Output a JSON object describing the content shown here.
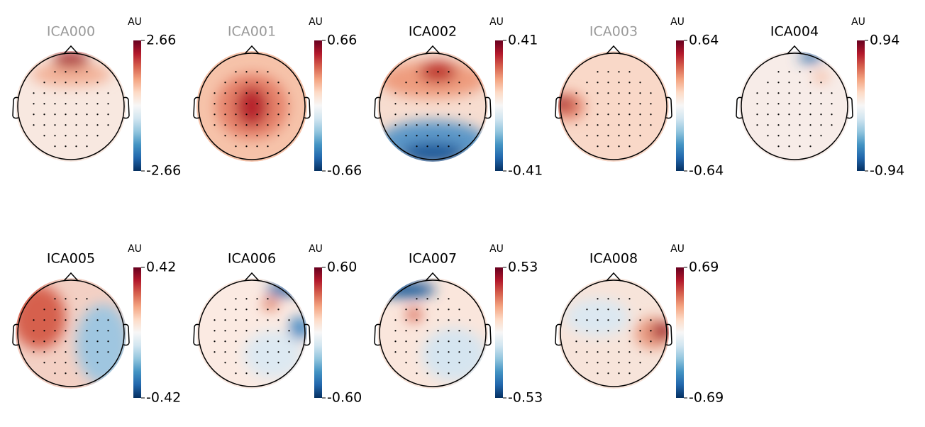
{
  "chart_data": [
    {
      "type": "topomap",
      "title": "ICA000",
      "title_color": "#999999",
      "colorbar_label": "AU",
      "ylim": [
        -2.66,
        2.66
      ],
      "yticks": [
        -2.66,
        2.66
      ]
    },
    {
      "type": "topomap",
      "title": "ICA001",
      "title_color": "#999999",
      "colorbar_label": "AU",
      "ylim": [
        -0.66,
        0.66
      ],
      "yticks": [
        -0.66,
        0.66
      ]
    },
    {
      "type": "topomap",
      "title": "ICA002",
      "title_color": "#000000",
      "colorbar_label": "AU",
      "ylim": [
        -0.41,
        0.41
      ],
      "yticks": [
        -0.41,
        0.41
      ]
    },
    {
      "type": "topomap",
      "title": "ICA003",
      "title_color": "#999999",
      "colorbar_label": "AU",
      "ylim": [
        -0.64,
        0.64
      ],
      "yticks": [
        -0.64,
        0.64
      ]
    },
    {
      "type": "topomap",
      "title": "ICA004",
      "title_color": "#000000",
      "colorbar_label": "AU",
      "ylim": [
        -0.94,
        0.94
      ],
      "yticks": [
        -0.94,
        0.94
      ]
    },
    {
      "type": "topomap",
      "title": "ICA005",
      "title_color": "#000000",
      "colorbar_label": "AU",
      "ylim": [
        -0.42,
        0.42
      ],
      "yticks": [
        -0.42,
        0.42
      ]
    },
    {
      "type": "topomap",
      "title": "ICA006",
      "title_color": "#000000",
      "colorbar_label": "AU",
      "ylim": [
        -0.6,
        0.6
      ],
      "yticks": [
        {
          "value": -0.6,
          "label": "-0.60"
        },
        {
          "value": 0.6,
          "label": "0.60"
        }
      ]
    },
    {
      "type": "topomap",
      "title": "ICA007",
      "title_color": "#000000",
      "colorbar_label": "AU",
      "ylim": [
        -0.53,
        0.53
      ],
      "yticks": [
        -0.53,
        0.53
      ]
    },
    {
      "type": "topomap",
      "title": "ICA008",
      "title_color": "#000000",
      "colorbar_label": "AU",
      "ylim": [
        -0.69,
        0.69
      ],
      "yticks": [
        -0.69,
        0.69
      ]
    }
  ]
}
